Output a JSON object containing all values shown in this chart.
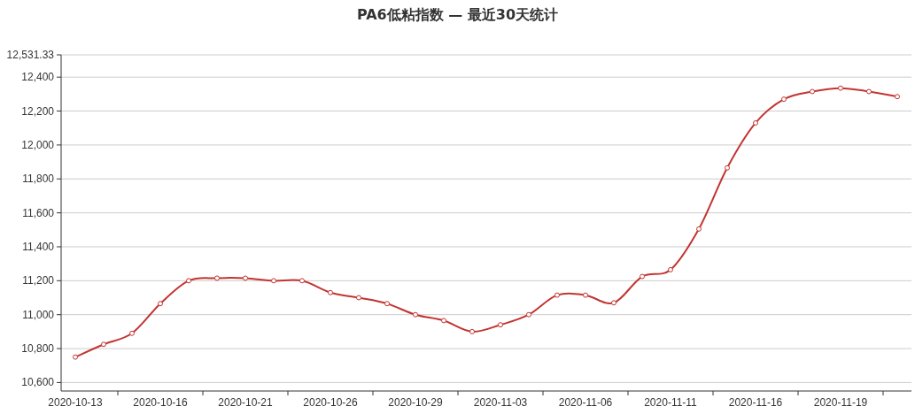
{
  "chart_data": {
    "type": "line",
    "title": "PA6低粘指数   —   最近30天统计",
    "categories": [
      "2020-10-13",
      null,
      null,
      "2020-10-16",
      null,
      null,
      "2020-10-21",
      null,
      null,
      "2020-10-26",
      null,
      null,
      "2020-10-29",
      null,
      null,
      "2020-11-03",
      null,
      null,
      "2020-11-06",
      null,
      null,
      "2020-11-11",
      null,
      null,
      "2020-11-16",
      null,
      null,
      "2020-11-19",
      null,
      null
    ],
    "values": [
      10750,
      10825,
      10890,
      11065,
      11200,
      11215,
      11215,
      11200,
      11200,
      11130,
      11100,
      11065,
      11000,
      10965,
      10900,
      10940,
      11000,
      11115,
      11115,
      11070,
      11225,
      11265,
      11505,
      11865,
      12130,
      12270,
      12315,
      12335,
      12315,
      12285
    ],
    "color": "#c23531",
    "ylim": [
      10550,
      12531.33
    ],
    "yticks": [
      {
        "value": 10600,
        "label": "10,600"
      },
      {
        "value": 10800,
        "label": "10,800"
      },
      {
        "value": 11000,
        "label": "11,000"
      },
      {
        "value": 11200,
        "label": "11,200"
      },
      {
        "value": 11400,
        "label": "11,400"
      },
      {
        "value": 11600,
        "label": "11,600"
      },
      {
        "value": 11800,
        "label": "11,800"
      },
      {
        "value": 12000,
        "label": "12,000"
      },
      {
        "value": 12200,
        "label": "12,200"
      },
      {
        "value": 12400,
        "label": "12,400"
      },
      {
        "value": 12531.33,
        "label": "12,531.33"
      }
    ],
    "grid": "y",
    "marker": "circle"
  }
}
